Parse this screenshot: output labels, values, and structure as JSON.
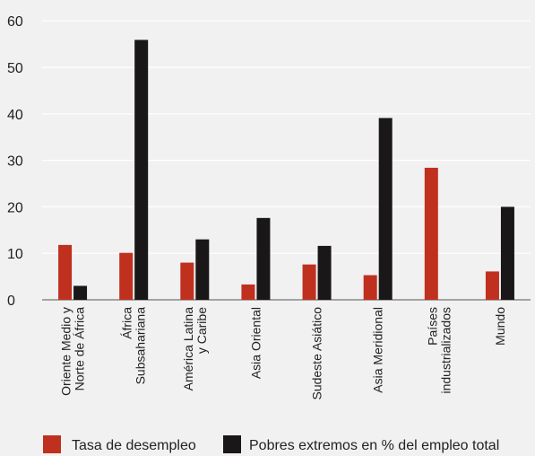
{
  "chart_data": {
    "type": "bar",
    "categories": [
      [
        "Oriente Medio y",
        "Norte de África"
      ],
      [
        "África",
        "Subsahariana"
      ],
      [
        "América Latina",
        "y Caribe"
      ],
      [
        "Asia Oriental"
      ],
      [
        "Sudeste Asiático"
      ],
      [
        "Asia Meridional"
      ],
      [
        "Países",
        "industrializados"
      ],
      [
        "Mundo"
      ]
    ],
    "series": [
      {
        "name": "Tasa de desempleo",
        "color": "#c0301f",
        "values": [
          11.8,
          10.1,
          8.0,
          3.3,
          7.6,
          5.3,
          28.4,
          6.1
        ]
      },
      {
        "name": "Pobres extremos en % del empleo total",
        "color": "#1a1718",
        "values": [
          3.0,
          55.9,
          13.0,
          17.6,
          11.6,
          39.1,
          null,
          20.0
        ]
      }
    ],
    "yticks": [
      0,
      10,
      20,
      30,
      40,
      50,
      60
    ],
    "ylim": [
      0,
      62
    ],
    "grid": true,
    "legend": "bottom"
  }
}
